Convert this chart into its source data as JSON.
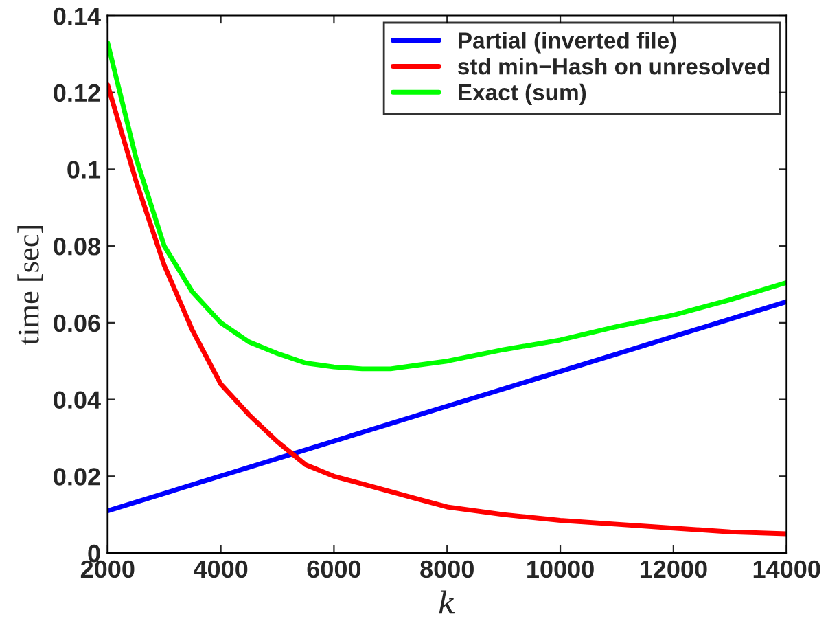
{
  "chart_data": {
    "type": "line",
    "xlabel": "k",
    "ylabel": "time [sec]",
    "x": [
      2000,
      2500,
      3000,
      3500,
      4000,
      4500,
      5000,
      5500,
      6000,
      6500,
      7000,
      7500,
      8000,
      9000,
      10000,
      11000,
      12000,
      13000,
      14000
    ],
    "series": [
      {
        "name": "Partial (inverted file)",
        "color": "#0000ff",
        "x": [
          2000,
          14000
        ],
        "values": [
          0.011,
          0.0655
        ]
      },
      {
        "name": "std min−Hash on unresolved",
        "color": "#ff0000",
        "values": [
          0.122,
          0.097,
          0.075,
          0.058,
          0.044,
          0.036,
          0.029,
          0.023,
          0.02,
          0.018,
          0.016,
          0.014,
          0.012,
          0.01,
          0.0085,
          0.0075,
          0.0065,
          0.0055,
          0.005
        ]
      },
      {
        "name": "Exact (sum)",
        "color": "#00ff00",
        "values": [
          0.133,
          0.103,
          0.08,
          0.068,
          0.06,
          0.055,
          0.052,
          0.0495,
          0.0485,
          0.048,
          0.048,
          0.049,
          0.05,
          0.053,
          0.0555,
          0.059,
          0.062,
          0.066,
          0.0705
        ]
      }
    ],
    "xlim": [
      2000,
      14000
    ],
    "xticks": [
      2000,
      4000,
      6000,
      8000,
      10000,
      12000,
      14000
    ],
    "ylim": [
      0,
      0.14
    ],
    "yticks": [
      0,
      0.02,
      0.04,
      0.06,
      0.08,
      0.1,
      0.12,
      0.14
    ],
    "grid": false,
    "legend": "top right",
    "line_style": "solid",
    "marker": "none"
  }
}
